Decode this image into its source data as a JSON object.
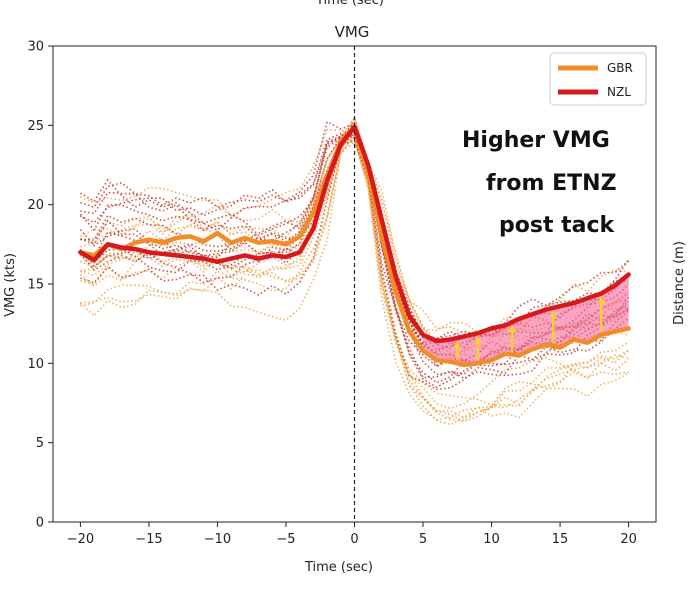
{
  "chart_data": {
    "type": "line",
    "title": "VMG",
    "top_cut_label": "Time (sec)",
    "xlabel": "Time (sec)",
    "ylabel": "VMG (kts)",
    "right_label": "Distance (m)",
    "xlim": [
      -22,
      22
    ],
    "ylim": [
      0,
      30
    ],
    "xticks": [
      -20,
      -15,
      -10,
      -5,
      0,
      5,
      10,
      15,
      20
    ],
    "yticks": [
      0,
      5,
      10,
      15,
      20,
      25,
      30
    ],
    "annotation_lines": [
      "Higher VMG",
      "from ETNZ",
      "post tack"
    ],
    "colors": {
      "gbr": "#f28c28",
      "nzl": "#d7191c",
      "gbr_runs": "#efa347",
      "nzl_runs": "#c0392b",
      "fill": "#f4679a",
      "arrow": "#f5d130"
    },
    "legend": [
      {
        "name": "GBR",
        "color": "#f28c28"
      },
      {
        "name": "NZL",
        "color": "#d7191c"
      }
    ],
    "series": [
      {
        "name": "GBR",
        "x": [
          -20,
          -19,
          -18,
          -17,
          -16,
          -15,
          -14,
          -13,
          -12,
          -11,
          -10,
          -9,
          -8,
          -7,
          -6,
          -5,
          -4,
          -3,
          -2,
          -1,
          0,
          1,
          2,
          3,
          4,
          5,
          6,
          7,
          8,
          9,
          10,
          11,
          12,
          13,
          14,
          15,
          16,
          17,
          18,
          19,
          20
        ],
        "y": [
          17.0,
          16.8,
          17.5,
          17.2,
          17.6,
          17.8,
          17.6,
          17.9,
          18.0,
          17.7,
          18.2,
          17.6,
          17.9,
          17.6,
          17.7,
          17.5,
          18.0,
          19.5,
          21.8,
          24.0,
          24.9,
          22.0,
          18.0,
          14.5,
          12.0,
          10.8,
          10.2,
          10.1,
          9.9,
          10.0,
          10.2,
          10.6,
          10.5,
          10.9,
          11.2,
          11.0,
          11.5,
          11.3,
          11.8,
          12.0,
          12.2
        ]
      },
      {
        "name": "NZL",
        "x": [
          -20,
          -19,
          -18,
          -17,
          -16,
          -15,
          -14,
          -13,
          -12,
          -11,
          -10,
          -9,
          -8,
          -7,
          -6,
          -5,
          -4,
          -3,
          -2,
          -1,
          0,
          1,
          2,
          3,
          4,
          5,
          6,
          7,
          8,
          9,
          10,
          11,
          12,
          13,
          14,
          15,
          16,
          17,
          18,
          19,
          20
        ],
        "y": [
          17.0,
          16.5,
          17.5,
          17.3,
          17.2,
          17.0,
          16.9,
          16.8,
          16.7,
          16.6,
          16.4,
          16.6,
          16.8,
          16.6,
          16.8,
          16.7,
          17.0,
          18.5,
          21.5,
          23.8,
          24.9,
          22.5,
          19.0,
          15.5,
          13.0,
          11.8,
          11.4,
          11.5,
          11.7,
          11.9,
          12.2,
          12.4,
          12.8,
          13.1,
          13.4,
          13.6,
          13.8,
          14.1,
          14.4,
          14.9,
          15.6
        ]
      }
    ],
    "gap_arrows_x": [
      7.5,
      9,
      11.5,
      14.5,
      18
    ]
  }
}
